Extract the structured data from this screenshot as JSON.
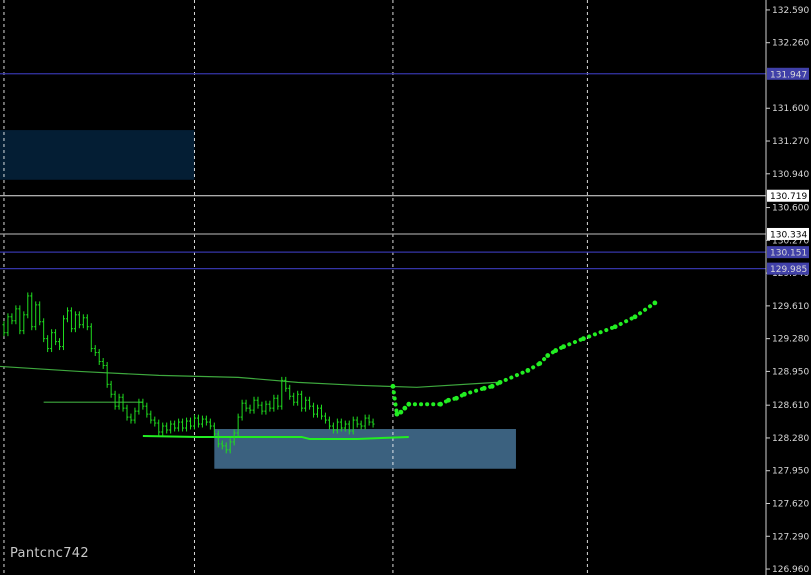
{
  "watermark": "Pantcnc742",
  "colors": {
    "background": "#000000",
    "grid": "#ffffff",
    "price_line_blue": "#3535a8",
    "price_line_white": "#e6e6e6",
    "price_line_gray": "#9a9a9a",
    "candles": "#1fdc1f",
    "ma": "#3ea83e",
    "forecast": "#22ee22",
    "zone_dark": "#041e34",
    "zone_light": "#3b617f",
    "label_blue_bg": "#4040a8",
    "label_white_bg": "#ffffff"
  },
  "chart_data": {
    "type": "line",
    "y_axis": {
      "ticks": [
        132.59,
        132.26,
        131.6,
        131.27,
        130.94,
        130.6,
        130.27,
        129.94,
        129.61,
        129.28,
        128.95,
        128.61,
        128.28,
        127.95,
        127.62,
        127.29,
        126.96
      ],
      "tick_labels": [
        "132.590",
        "132.260",
        "131.600",
        "131.270",
        "130.940",
        "130.600",
        "130.270",
        "129.940",
        "129.610",
        "129.280",
        "128.950",
        "128.610",
        "128.280",
        "127.950",
        "127.620",
        "127.290",
        "126.960"
      ],
      "range": [
        126.9,
        132.69
      ]
    },
    "horizontal_levels": [
      {
        "value": 131.947,
        "label": "131.947",
        "style": "blue"
      },
      {
        "value": 130.719,
        "label": "130.719",
        "style": "white"
      },
      {
        "value": 130.334,
        "label": "130.334",
        "style": "gray"
      },
      {
        "value": 130.151,
        "label": "130.151",
        "style": "blue"
      },
      {
        "value": 129.985,
        "label": "129.985",
        "style": "blue"
      }
    ],
    "zones": [
      {
        "name": "upper-zone",
        "bar_start": 0,
        "bar_end": 49,
        "y_top": 131.38,
        "y_bottom": 130.88,
        "style": "dark"
      },
      {
        "name": "lower-zone",
        "bar_start": 54,
        "bar_end": 130,
        "y_top": 128.37,
        "y_bottom": 127.97,
        "style": "light"
      }
    ],
    "x_bar_range": [
      0,
      193
    ],
    "vertical_grid_bars": [
      1,
      49,
      99,
      148
    ],
    "price_series": [
      129.42,
      129.34,
      129.5,
      129.46,
      129.58,
      129.36,
      129.52,
      129.71,
      129.4,
      129.62,
      129.45,
      129.28,
      129.18,
      129.34,
      129.25,
      129.2,
      129.48,
      129.56,
      129.38,
      129.52,
      129.42,
      129.49,
      129.4,
      129.18,
      129.14,
      129.05,
      129.01,
      128.82,
      128.72,
      128.6,
      128.69,
      128.58,
      128.49,
      128.46,
      128.55,
      128.64,
      128.6,
      128.52,
      128.46,
      128.43,
      128.34,
      128.4,
      128.36,
      128.42,
      128.38,
      128.44,
      128.38,
      128.45,
      128.4,
      128.48,
      128.42,
      128.47,
      128.44,
      128.4,
      128.32,
      128.22,
      128.2,
      128.16,
      128.24,
      128.33,
      128.49,
      128.63,
      128.58,
      128.56,
      128.66,
      128.61,
      128.55,
      128.62,
      128.58,
      128.68,
      128.6,
      128.86,
      128.78,
      128.7,
      128.64,
      128.72,
      128.58,
      128.66,
      128.6,
      128.52,
      128.58,
      128.5,
      128.46,
      128.4,
      128.36,
      128.44,
      128.38,
      128.42,
      128.35,
      128.46,
      128.42,
      128.4,
      128.48,
      128.44,
      128.42
    ],
    "ma_series": [
      {
        "bar": 0,
        "value": 129.0
      },
      {
        "bar": 20,
        "value": 128.95
      },
      {
        "bar": 40,
        "value": 128.91
      },
      {
        "bar": 60,
        "value": 128.89
      },
      {
        "bar": 75,
        "value": 128.84
      },
      {
        "bar": 90,
        "value": 128.81
      },
      {
        "bar": 105,
        "value": 128.79
      },
      {
        "bar": 125,
        "value": 128.84
      }
    ],
    "lower_line_series": [
      {
        "bar": 36,
        "value": 128.3
      },
      {
        "bar": 50,
        "value": 128.29
      },
      {
        "bar": 76,
        "value": 128.29
      },
      {
        "bar": 78,
        "value": 128.27
      },
      {
        "bar": 90,
        "value": 128.27
      },
      {
        "bar": 103,
        "value": 128.29
      }
    ],
    "horizontal_segment": {
      "bar_start": 11,
      "bar_end": 36,
      "value": 128.64
    },
    "forecast_series": [
      {
        "bar": 99,
        "value": 128.8
      },
      {
        "bar": 100,
        "value": 128.52
      },
      {
        "bar": 101,
        "value": 128.54
      },
      {
        "bar": 102,
        "value": 128.58
      },
      {
        "bar": 103,
        "value": 128.62
      },
      {
        "bar": 111,
        "value": 128.62
      },
      {
        "bar": 113,
        "value": 128.66
      },
      {
        "bar": 115,
        "value": 128.68
      },
      {
        "bar": 117,
        "value": 128.72
      },
      {
        "bar": 122,
        "value": 128.78
      },
      {
        "bar": 124,
        "value": 128.8
      },
      {
        "bar": 126,
        "value": 128.84
      },
      {
        "bar": 133,
        "value": 128.96
      },
      {
        "bar": 136,
        "value": 129.03
      },
      {
        "bar": 138,
        "value": 129.11
      },
      {
        "bar": 140,
        "value": 129.16
      },
      {
        "bar": 142,
        "value": 129.2
      },
      {
        "bar": 147,
        "value": 129.28
      },
      {
        "bar": 155,
        "value": 129.4
      },
      {
        "bar": 160,
        "value": 129.5
      },
      {
        "bar": 165,
        "value": 129.64
      }
    ]
  }
}
